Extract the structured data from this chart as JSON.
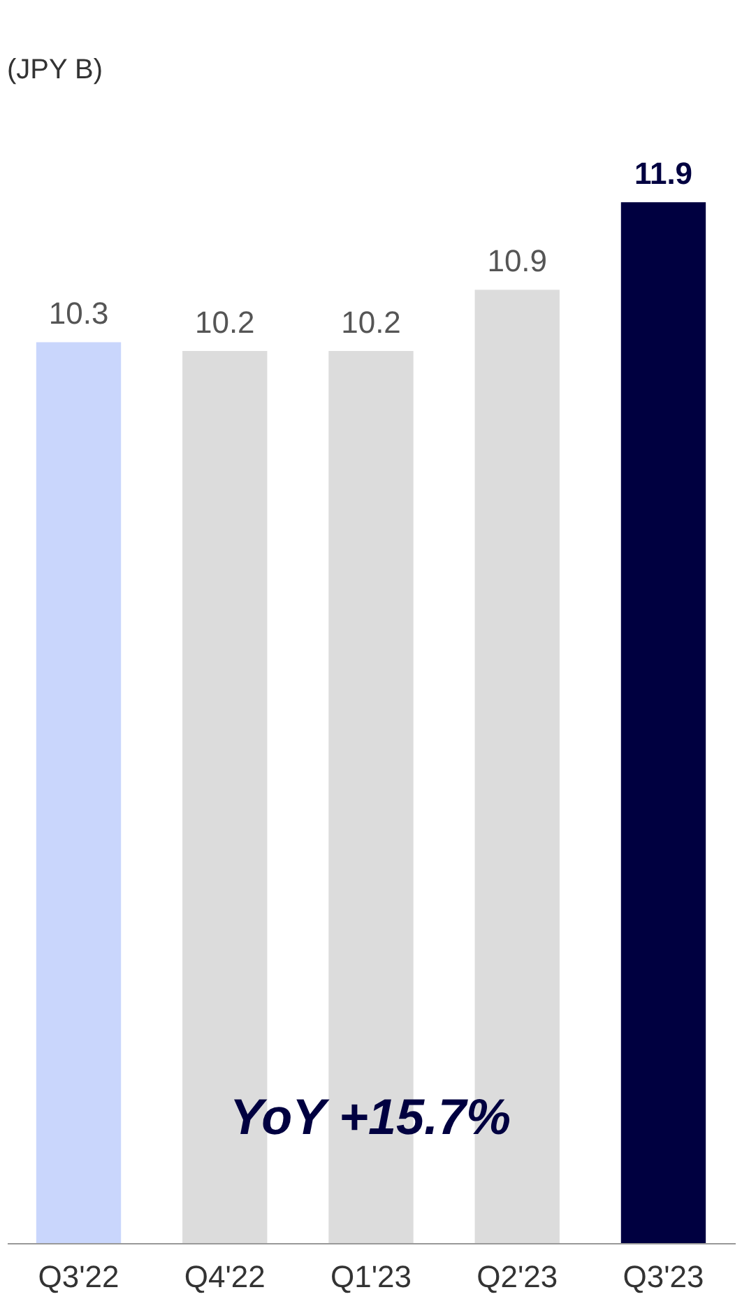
{
  "chart_data": {
    "type": "bar",
    "ylabel": "(JPY B)",
    "categories": [
      "Q3'22",
      "Q4'22",
      "Q1'23",
      "Q2'23",
      "Q3'23"
    ],
    "values": [
      10.3,
      10.2,
      10.2,
      10.9,
      11.9
    ],
    "colors": [
      "#c9d6fc",
      "#dcdcdc",
      "#dcdcdc",
      "#dcdcdc",
      "#000040"
    ],
    "data_labels": true,
    "annotations": [
      "YoY +15.7%"
    ],
    "grid": false
  }
}
